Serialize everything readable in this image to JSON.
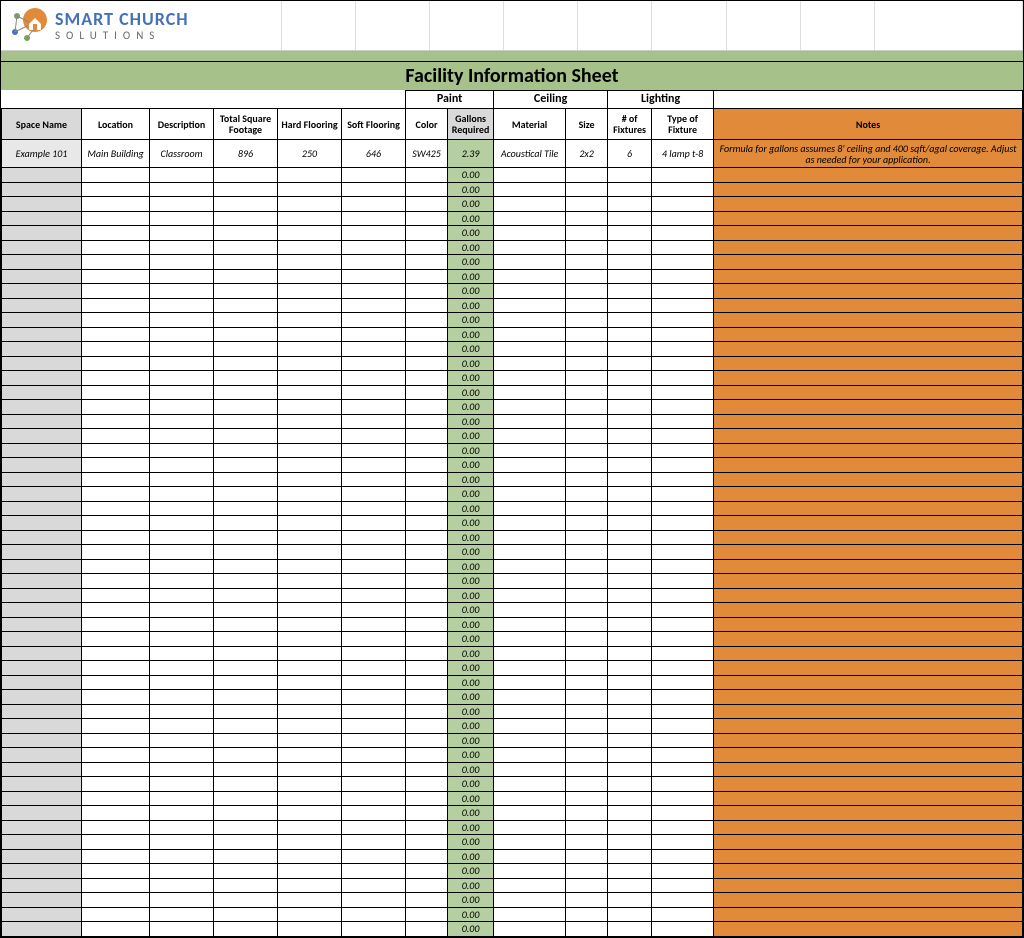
{
  "logo": {
    "name_line1": "SMART CHURCH",
    "name_line2": "SOLUTIONS",
    "primary_color": "#4472b8",
    "accent_color": "#e08a3a",
    "node_color": "#7aa05a"
  },
  "colors": {
    "green_band": "#a7c18a",
    "header_orange": "#e08a3a",
    "header_grey": "#d9d9d9",
    "gallons_bg": "#b5cfa1",
    "space_col_bg": "#d9d9d9",
    "notes_col_bg": "#e08a3a",
    "example_bg": "#e8e8e8",
    "border": "#000000"
  },
  "title": "Facility Information Sheet",
  "groups": {
    "paint": "Paint",
    "ceiling": "Ceiling",
    "lighting": "Lighting"
  },
  "columns": {
    "space": "Space Name",
    "location": "Location",
    "description": "Description",
    "sqft": "Total Square Footage",
    "hard": "Hard Flooring",
    "soft": "Soft Flooring",
    "color": "Color",
    "gallons": "Gallons Required",
    "material": "Material",
    "size": "Size",
    "fixtures": "# of Fixtures",
    "fixture_type": "Type of Fixture",
    "notes": "Notes"
  },
  "example": {
    "space": "Example 101",
    "location": "Main Building",
    "description": "Classroom",
    "sqft": "896",
    "hard": "250",
    "soft": "646",
    "color": "SW425",
    "gallons": "2.39",
    "material": "Acoustical Tile",
    "size": "2x2",
    "fixtures": "6",
    "fixture_type": "4 lamp t-8",
    "notes": "Formula for gallons assumes 8' ceiling and 400 sqft/agal coverage. Adjust as needed for your application."
  },
  "empty_gallons_value": "0.00",
  "empty_row_count": 53
}
